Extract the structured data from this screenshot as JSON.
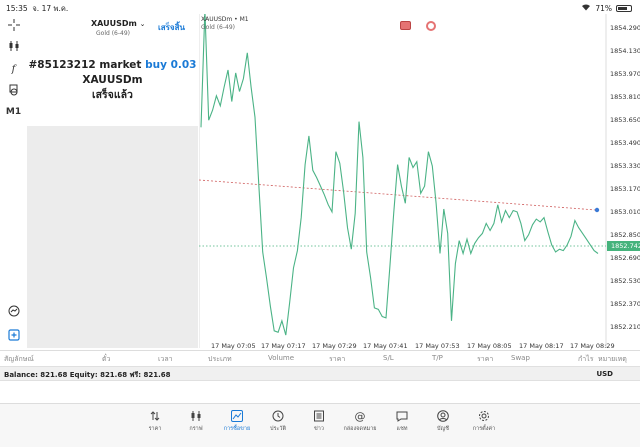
{
  "status": {
    "time": "15:35",
    "date": "จ. 17 พ.ค.",
    "battery": "71%"
  },
  "toolbar": {
    "timeframe": "M1"
  },
  "panel": {
    "symbol": "XAUUSDm",
    "caret": "⌄",
    "subtitle": "Gold (6-49)",
    "done": "เสร็จสิ้น",
    "order_line_id": "#85123212 market",
    "order_line_action": "buy 0.03",
    "order_symbol": "XAUUSDm",
    "order_status": "เสร็จแล้ว"
  },
  "chart": {
    "title": "XAUUSDm • M1",
    "subtitle": "Gold (6-49)",
    "current_price": "1852.742",
    "colors": {
      "line": "#4bb386",
      "ask_line": "#d06060",
      "bid_line": "#45b37c"
    }
  },
  "chart_data": {
    "type": "line",
    "y_ticks": [
      "1854.290",
      "1854.130",
      "1853.970",
      "1853.810",
      "1853.650",
      "1853.490",
      "1853.330",
      "1853.170",
      "1853.010",
      "1852.850",
      "1852.690",
      "1852.530",
      "1852.370",
      "1852.210"
    ],
    "x_ticks": [
      "17 May 07:05",
      "17 May 07:17",
      "17 May 07:29",
      "17 May 07:41",
      "17 May 07:53",
      "17 May 08:05",
      "17 May 08:17",
      "17 May 08:29"
    ],
    "ylim": [
      1852.13,
      1854.37
    ],
    "x": [
      0,
      1,
      2,
      3,
      4,
      5,
      6,
      7,
      8,
      9,
      10,
      11,
      12,
      13,
      14,
      15,
      16,
      17,
      18,
      19,
      20,
      21,
      22,
      23,
      24,
      25,
      26,
      27,
      28,
      29,
      30,
      31,
      32,
      33,
      34,
      35,
      36,
      37,
      38,
      39,
      40,
      41,
      42,
      43,
      44,
      45,
      46,
      47,
      48,
      49,
      50,
      51,
      52,
      53,
      54,
      55,
      56,
      57,
      58,
      59,
      60,
      61,
      62,
      63,
      64,
      65,
      66,
      67,
      68,
      69,
      70,
      71,
      72,
      73,
      74,
      75,
      76,
      77,
      78,
      79,
      80,
      81,
      82,
      83,
      84,
      85,
      86,
      87,
      88,
      89,
      90,
      91,
      92,
      93,
      94,
      95,
      96,
      97,
      98,
      99,
      100,
      101,
      102,
      103
    ],
    "values": [
      1853.6,
      1854.42,
      1853.65,
      1853.72,
      1853.82,
      1853.75,
      1853.88,
      1854.0,
      1853.78,
      1853.98,
      1853.85,
      1853.94,
      1854.12,
      1853.88,
      1853.67,
      1853.2,
      1852.73,
      1852.55,
      1852.35,
      1852.18,
      1852.17,
      1852.25,
      1852.15,
      1852.38,
      1852.62,
      1852.74,
      1852.97,
      1853.34,
      1853.54,
      1853.3,
      1853.25,
      1853.19,
      1853.13,
      1853.06,
      1853.01,
      1853.43,
      1853.35,
      1853.15,
      1852.9,
      1852.75,
      1853.0,
      1853.64,
      1853.39,
      1852.73,
      1852.55,
      1852.34,
      1852.33,
      1852.28,
      1852.27,
      1852.63,
      1853.0,
      1853.34,
      1853.19,
      1853.07,
      1853.39,
      1853.32,
      1853.36,
      1853.14,
      1853.19,
      1853.43,
      1853.33,
      1853.07,
      1852.72,
      1853.03,
      1852.86,
      1852.25,
      1852.65,
      1852.81,
      1852.72,
      1852.82,
      1852.72,
      1852.79,
      1852.83,
      1852.86,
      1852.93,
      1852.88,
      1852.93,
      1853.06,
      1852.94,
      1853.02,
      1852.97,
      1853.02,
      1853.01,
      1852.93,
      1852.81,
      1852.85,
      1852.92,
      1852.96,
      1852.94,
      1852.97,
      1852.87,
      1852.78,
      1852.73,
      1852.75,
      1852.74,
      1852.78,
      1852.84,
      1852.95,
      1852.9,
      1852.86,
      1852.82,
      1852.78,
      1852.74,
      1852.72
    ]
  },
  "table_headers": {
    "symbol": "สัญลักษณ์",
    "ticket": "ตั๋ว",
    "time": "เวลา",
    "type": "ประเภท",
    "volume": "Volume",
    "price": "ราคา",
    "sl": "S/L",
    "tp": "T/P",
    "price2": "ราคา",
    "swap": "Swap",
    "profit": "กำไร",
    "comment": "หมายเหตุ"
  },
  "balance": {
    "text": "Balance: 821.68 Equity: 821.68 ฟรี: 821.68",
    "currency": "USD"
  },
  "nav": [
    {
      "label": "ราคา",
      "icon": "quotes-icon"
    },
    {
      "label": "กราฟ",
      "icon": "chart-icon"
    },
    {
      "label": "การซื้อขาย",
      "icon": "trade-icon"
    },
    {
      "label": "ประวัติ",
      "icon": "history-icon"
    },
    {
      "label": "ข่าว",
      "icon": "news-icon"
    },
    {
      "label": "กล่องจดหมาย",
      "icon": "mailbox-icon"
    },
    {
      "label": "แชท",
      "icon": "chat-icon"
    },
    {
      "label": "บัญชี",
      "icon": "account-icon"
    },
    {
      "label": "การตั้งค่า",
      "icon": "settings-icon"
    }
  ]
}
